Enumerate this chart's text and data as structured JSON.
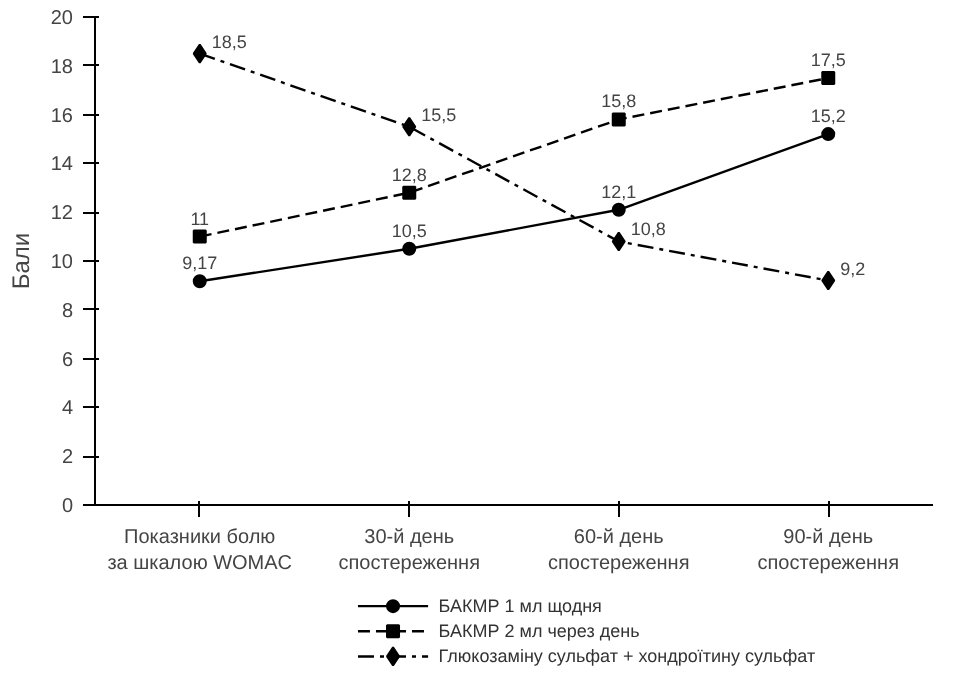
{
  "chart_data": {
    "type": "line",
    "ylabel": "Бали",
    "categories": [
      "Показники болю\nза шкалою WOMAC",
      "30-й день\nспостереження",
      "60-й день\nспостереження",
      "90-й день\nспостереження"
    ],
    "ylim": [
      0,
      20
    ],
    "yticks": [
      0,
      2,
      4,
      6,
      8,
      10,
      12,
      14,
      16,
      18,
      20
    ],
    "grid": false,
    "legend": "bottom",
    "series": [
      {
        "name": "БАКМР 1 мл щодня",
        "color": "#000000",
        "values": [
          9.17,
          10.5,
          12.1,
          15.2
        ],
        "value_labels": [
          "9,17",
          "10,5",
          "12,1",
          "15,2"
        ],
        "marker": "circle",
        "line_style": "solid"
      },
      {
        "name": "БАКМР 2 мл через день",
        "color": "#000000",
        "values": [
          11,
          12.8,
          15.8,
          17.5
        ],
        "value_labels": [
          "11",
          "12,8",
          "15,8",
          "17,5"
        ],
        "marker": "square",
        "line_style": "dashed"
      },
      {
        "name": "Глюкозаміну сульфат + хондроїтину сульфат",
        "color": "#000000",
        "values": [
          18.5,
          15.5,
          10.8,
          9.2
        ],
        "value_labels": [
          "18,5",
          "15,5",
          "10,8",
          "9,2"
        ],
        "marker": "diamond",
        "line_style": "dashdot"
      }
    ]
  }
}
